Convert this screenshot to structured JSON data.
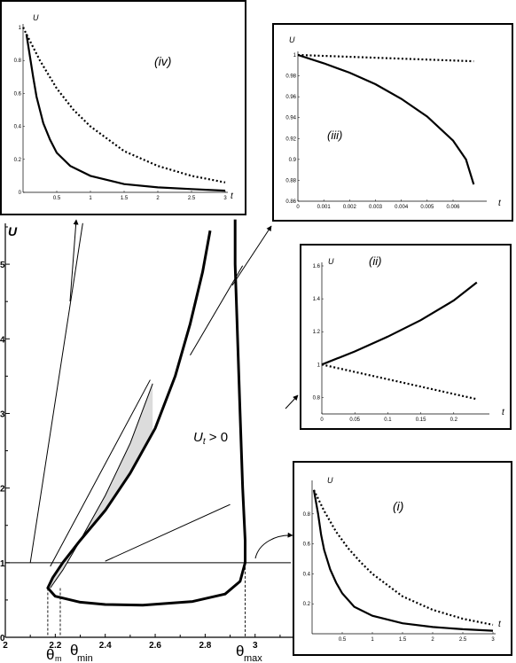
{
  "chart_data": [
    {
      "id": "main",
      "type": "line",
      "ylabel": "U",
      "xlim": [
        2.0,
        3.15
      ],
      "ylim": [
        0,
        5.5
      ],
      "xticks": [
        "2",
        "2.2",
        "2.4",
        "2.6",
        "2.8",
        "3"
      ],
      "yticks": [
        "0",
        "1",
        "2",
        "3",
        "4",
        "5"
      ],
      "annotation": "U_t > 0",
      "theta_labels": [
        "θ_m",
        "θ_min",
        "θ_max"
      ],
      "reference_line_U": 1,
      "curve_outer": [
        [
          2.92,
          5.6
        ],
        [
          2.92,
          5.0
        ],
        [
          2.93,
          4.0
        ],
        [
          2.94,
          3.0
        ],
        [
          2.95,
          2.0
        ],
        [
          2.96,
          1.3
        ],
        [
          2.96,
          1.0
        ],
        [
          2.94,
          0.75
        ],
        [
          2.88,
          0.58
        ],
        [
          2.75,
          0.48
        ],
        [
          2.55,
          0.43
        ],
        [
          2.4,
          0.44
        ],
        [
          2.3,
          0.47
        ],
        [
          2.2,
          0.55
        ],
        [
          2.17,
          0.66
        ],
        [
          2.19,
          0.8
        ],
        [
          2.23,
          1.0
        ],
        [
          2.3,
          1.3
        ],
        [
          2.4,
          1.7
        ],
        [
          2.5,
          2.2
        ],
        [
          2.6,
          2.8
        ],
        [
          2.68,
          3.5
        ],
        [
          2.74,
          4.2
        ],
        [
          2.79,
          4.9
        ],
        [
          2.82,
          5.45
        ]
      ],
      "curve_inner": [
        [
          2.18,
          0.66
        ],
        [
          2.23,
          0.9
        ],
        [
          2.3,
          1.3
        ],
        [
          2.4,
          1.9
        ],
        [
          2.5,
          2.6
        ],
        [
          2.59,
          3.4
        ]
      ],
      "rays": [
        [
          [
            2.1,
            1.0
          ],
          [
            2.31,
            5.55
          ]
        ],
        [
          [
            2.18,
            0.95
          ],
          [
            2.58,
            3.45
          ]
        ],
        [
          [
            2.74,
            3.78
          ],
          [
            2.95,
            4.98
          ]
        ],
        [
          [
            2.4,
            1.02
          ],
          [
            2.9,
            1.78
          ]
        ]
      ]
    },
    {
      "id": "iv",
      "type": "line",
      "panel": "(iv)",
      "xlabel": "t",
      "ylabel": "U",
      "xlim": [
        0,
        3
      ],
      "ylim": [
        0,
        1
      ],
      "xticks": [
        "0.5",
        "1",
        "1.5",
        "2",
        "2.5",
        "3"
      ],
      "yticks": [
        "0",
        "0.2",
        "0.4",
        "0.6",
        "0.8",
        "1"
      ],
      "series": [
        {
          "style": "solid",
          "x": [
            0.05,
            0.1,
            0.15,
            0.2,
            0.3,
            0.4,
            0.5,
            0.7,
            1.0,
            1.5,
            2.0,
            2.5,
            3.0
          ],
          "y": [
            0.96,
            0.83,
            0.7,
            0.58,
            0.42,
            0.32,
            0.24,
            0.16,
            0.1,
            0.05,
            0.03,
            0.02,
            0.01
          ]
        },
        {
          "style": "dotted",
          "x": [
            0,
            0.25,
            0.5,
            0.75,
            1.0,
            1.5,
            2.0,
            2.5,
            3.0
          ],
          "y": [
            1.0,
            0.8,
            0.63,
            0.5,
            0.4,
            0.25,
            0.16,
            0.1,
            0.06
          ]
        }
      ]
    },
    {
      "id": "iii",
      "type": "line",
      "panel": "(iii)",
      "xlabel": "t",
      "ylabel": "U",
      "xlim": [
        0,
        0.0072
      ],
      "ylim": [
        0.86,
        1.0
      ],
      "xticks": [
        "0",
        "0.001",
        "0.002",
        "0.003",
        "0.004",
        "0.005",
        "0.006"
      ],
      "yticks": [
        "0.86",
        "0.88",
        "0.9",
        "0.92",
        "0.94",
        "0.96",
        "0.98",
        "1"
      ],
      "series": [
        {
          "style": "solid",
          "x": [
            0,
            0.001,
            0.002,
            0.003,
            0.004,
            0.005,
            0.006,
            0.0065,
            0.0068
          ],
          "y": [
            1.0,
            0.992,
            0.983,
            0.972,
            0.958,
            0.941,
            0.918,
            0.9,
            0.876
          ]
        },
        {
          "style": "dotted",
          "x": [
            0,
            0.0068
          ],
          "y": [
            1.0,
            0.994
          ]
        }
      ]
    },
    {
      "id": "ii",
      "type": "line",
      "panel": "(ii)",
      "xlabel": "t",
      "ylabel": "U",
      "xlim": [
        0,
        0.25
      ],
      "ylim": [
        0.7,
        1.6
      ],
      "xticks": [
        "0",
        "0.05",
        "0.1",
        "0.15",
        "0.2"
      ],
      "yticks": [
        "0.8",
        "1",
        "1.2",
        "1.4",
        "1.6"
      ],
      "series": [
        {
          "style": "solid",
          "x": [
            0,
            0.05,
            0.1,
            0.15,
            0.2,
            0.235
          ],
          "y": [
            1.0,
            1.08,
            1.17,
            1.27,
            1.39,
            1.5
          ]
        },
        {
          "style": "dotted",
          "x": [
            0,
            0.235
          ],
          "y": [
            1.0,
            0.79
          ]
        }
      ]
    },
    {
      "id": "i",
      "type": "line",
      "panel": "(i)",
      "xlabel": "t",
      "ylabel": "U",
      "xlim": [
        0,
        3
      ],
      "ylim": [
        0,
        1
      ],
      "xticks": [
        "0.5",
        "1",
        "1.5",
        "2",
        "2.5",
        "3"
      ],
      "yticks": [
        "0.2",
        "0.4",
        "0.6",
        "0.8"
      ],
      "series": [
        {
          "style": "solid",
          "x": [
            0.03,
            0.1,
            0.15,
            0.2,
            0.3,
            0.4,
            0.5,
            0.7,
            1.0,
            1.5,
            2.0,
            2.5,
            3.0
          ],
          "y": [
            0.96,
            0.8,
            0.66,
            0.56,
            0.43,
            0.34,
            0.27,
            0.18,
            0.12,
            0.07,
            0.045,
            0.03,
            0.02
          ]
        },
        {
          "style": "dotted",
          "x": [
            0.03,
            0.2,
            0.4,
            0.6,
            0.8,
            1.0,
            1.5,
            2.0,
            2.5,
            3.0
          ],
          "y": [
            0.96,
            0.82,
            0.68,
            0.57,
            0.48,
            0.4,
            0.25,
            0.16,
            0.1,
            0.06
          ]
        }
      ]
    }
  ]
}
